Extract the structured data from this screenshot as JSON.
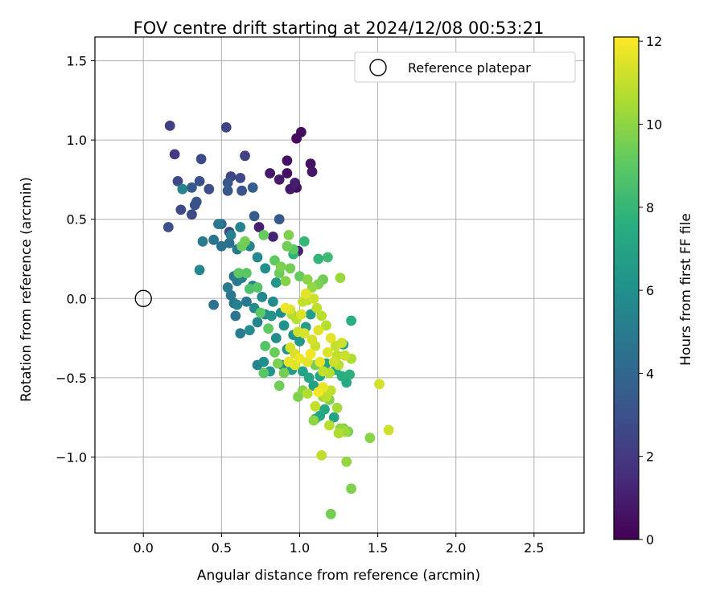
{
  "chart_data": {
    "type": "scatter",
    "title": "FOV centre drift starting at 2024/12/08 00:53:21",
    "xlabel": "Angular distance from reference (arcmin)",
    "ylabel": "Rotation from reference (arcmin)",
    "xlim": [
      -0.31,
      2.82
    ],
    "ylim": [
      -1.48,
      1.65
    ],
    "xticks": [
      0.0,
      0.5,
      1.0,
      1.5,
      2.0,
      2.5
    ],
    "xtick_labels": [
      "0.0",
      "0.5",
      "1.0",
      "1.5",
      "2.0",
      "2.5"
    ],
    "yticks": [
      -1.0,
      -0.5,
      0.0,
      0.5,
      1.0,
      1.5
    ],
    "ytick_labels": [
      "−1.0",
      "−0.5",
      "0.0",
      "0.5",
      "1.0",
      "1.5"
    ],
    "grid": true,
    "legend": {
      "position": "top-right",
      "entries": [
        "Reference platepar"
      ]
    },
    "colorbar": {
      "label": "Hours from first FF file",
      "range": [
        0,
        12.1
      ],
      "ticks": [
        0,
        2,
        4,
        6,
        8,
        10,
        12
      ],
      "tick_labels": [
        "0",
        "2",
        "4",
        "6",
        "8",
        "10",
        "12"
      ],
      "colormap": "viridis"
    },
    "reference_point": {
      "name": "Reference platepar",
      "x": 0.0,
      "y": 0.0
    },
    "points": [
      [
        0.98,
        1.01,
        0.3
      ],
      [
        1.01,
        1.05,
        0.4
      ],
      [
        0.92,
        0.87,
        0.5
      ],
      [
        1.07,
        0.85,
        0.6
      ],
      [
        1.08,
        0.8,
        0.7
      ],
      [
        0.92,
        0.79,
        0.5
      ],
      [
        0.81,
        0.79,
        0.8
      ],
      [
        0.87,
        0.75,
        0.9
      ],
      [
        0.97,
        0.73,
        1.0
      ],
      [
        0.98,
        0.7,
        0.6
      ],
      [
        0.94,
        0.69,
        0.8
      ],
      [
        0.74,
        0.45,
        1.1
      ],
      [
        0.83,
        0.39,
        1.2
      ],
      [
        0.99,
        0.3,
        1.0
      ],
      [
        0.17,
        1.09,
        2.2
      ],
      [
        0.53,
        1.08,
        2.4
      ],
      [
        0.2,
        0.91,
        2.1
      ],
      [
        0.65,
        0.9,
        2.3
      ],
      [
        0.37,
        0.88,
        2.8
      ],
      [
        0.56,
        0.77,
        2.5
      ],
      [
        0.22,
        0.74,
        2.6
      ],
      [
        0.62,
        0.76,
        2.7
      ],
      [
        0.36,
        0.74,
        3.0
      ],
      [
        0.54,
        0.73,
        3.2
      ],
      [
        0.31,
        0.7,
        3.4
      ],
      [
        0.42,
        0.69,
        2.9
      ],
      [
        0.54,
        0.68,
        3.3
      ],
      [
        0.63,
        0.68,
        3.1
      ],
      [
        0.7,
        0.7,
        3.6
      ],
      [
        0.24,
        0.56,
        2.8
      ],
      [
        0.33,
        0.59,
        3.0
      ],
      [
        0.34,
        0.61,
        3.1
      ],
      [
        0.31,
        0.53,
        2.7
      ],
      [
        0.71,
        0.52,
        3.5
      ],
      [
        0.87,
        0.5,
        3.4
      ],
      [
        0.16,
        0.45,
        2.9
      ],
      [
        0.55,
        0.42,
        2.6
      ],
      [
        0.25,
        0.69,
        5.4
      ],
      [
        0.36,
        0.18,
        5.5
      ],
      [
        0.38,
        0.36,
        5.0
      ],
      [
        0.45,
        0.37,
        4.6
      ],
      [
        0.48,
        0.47,
        4.8
      ],
      [
        0.5,
        0.47,
        4.2
      ],
      [
        0.5,
        0.33,
        4.5
      ],
      [
        0.55,
        0.35,
        4.4
      ],
      [
        0.56,
        0.4,
        5.2
      ],
      [
        0.6,
        0.31,
        4.9
      ],
      [
        0.62,
        0.45,
        5.3
      ],
      [
        0.68,
        0.33,
        5.5
      ],
      [
        0.73,
        0.26,
        5.6
      ],
      [
        0.58,
        0.14,
        4.7
      ],
      [
        0.6,
        0.11,
        4.9
      ],
      [
        0.63,
        0.13,
        5.1
      ],
      [
        0.54,
        0.07,
        5.0
      ],
      [
        0.56,
        0.02,
        4.8
      ],
      [
        0.58,
        -0.03,
        4.6
      ],
      [
        0.45,
        -0.04,
        4.5
      ],
      [
        0.6,
        -0.04,
        5.2
      ],
      [
        0.59,
        -0.11,
        4.7
      ],
      [
        0.66,
        -0.02,
        4.9
      ],
      [
        0.7,
        0.08,
        5.3
      ],
      [
        0.71,
        -0.06,
        5.7
      ],
      [
        0.62,
        -0.22,
        5.0
      ],
      [
        0.68,
        -0.2,
        5.8
      ],
      [
        0.73,
        -0.15,
        5.4
      ],
      [
        0.76,
        0.01,
        5.5
      ],
      [
        0.78,
        -0.1,
        5.6
      ],
      [
        0.78,
        0.19,
        6.0
      ],
      [
        0.83,
        -0.02,
        5.7
      ],
      [
        0.82,
        -0.11,
        6.2
      ],
      [
        0.85,
        -0.25,
        5.8
      ],
      [
        0.85,
        0.1,
        6.4
      ],
      [
        0.88,
        -0.09,
        5.9
      ],
      [
        0.9,
        -0.17,
        6.1
      ],
      [
        0.89,
        -0.42,
        5.6
      ],
      [
        0.92,
        -0.32,
        6.3
      ],
      [
        0.73,
        -0.42,
        5.3
      ],
      [
        0.77,
        -0.4,
        6.0
      ],
      [
        0.81,
        -0.46,
        6.2
      ],
      [
        0.95,
        -0.45,
        6.5
      ],
      [
        0.96,
        -0.23,
        6.1
      ],
      [
        1.0,
        -0.27,
        6.4
      ],
      [
        1.04,
        -0.18,
        6.6
      ],
      [
        1.07,
        -0.1,
        6.7
      ],
      [
        1.02,
        -0.46,
        6.9
      ],
      [
        1.06,
        -0.5,
        7.0
      ],
      [
        1.09,
        -0.55,
        6.8
      ],
      [
        1.13,
        -0.49,
        7.2
      ],
      [
        1.17,
        -0.41,
        7.1
      ],
      [
        1.23,
        -0.45,
        7.4
      ],
      [
        1.27,
        -0.49,
        7.5
      ],
      [
        1.3,
        -0.53,
        7.3
      ],
      [
        1.32,
        -0.48,
        7.7
      ],
      [
        1.33,
        -0.14,
        7.6
      ],
      [
        1.28,
        -0.29,
        7.0
      ],
      [
        1.1,
        -0.76,
        6.8
      ],
      [
        1.13,
        -0.74,
        7.1
      ],
      [
        1.16,
        -0.7,
        7.3
      ],
      [
        1.22,
        -0.75,
        6.9
      ],
      [
        1.18,
        0.26,
        8.2
      ],
      [
        1.12,
        0.25,
        7.9
      ],
      [
        1.03,
        0.36,
        8.0
      ],
      [
        0.96,
        0.28,
        7.8
      ],
      [
        0.61,
        0.16,
        9.0
      ],
      [
        0.66,
        0.16,
        8.9
      ],
      [
        0.68,
        0.06,
        8.6
      ],
      [
        0.73,
        0.07,
        8.8
      ],
      [
        0.63,
        0.33,
        9.3
      ],
      [
        0.65,
        0.36,
        9.5
      ],
      [
        0.77,
        0.4,
        9.2
      ],
      [
        0.84,
        0.24,
        9.1
      ],
      [
        0.88,
        0.2,
        9.6
      ],
      [
        0.92,
        0.33,
        9.4
      ],
      [
        0.96,
        0.31,
        9.0
      ],
      [
        0.93,
        0.4,
        9.7
      ],
      [
        0.87,
        0.16,
        9.3
      ],
      [
        0.91,
        0.11,
        9.8
      ],
      [
        0.94,
        0.19,
        9.5
      ],
      [
        1.0,
        0.14,
        9.2
      ],
      [
        1.05,
        0.12,
        9.9
      ],
      [
        1.08,
        0.07,
        10.1
      ],
      [
        1.12,
        0.09,
        9.6
      ],
      [
        1.15,
        0.12,
        9.4
      ],
      [
        1.26,
        0.13,
        10.2
      ],
      [
        0.75,
        -0.09,
        9.0
      ],
      [
        0.8,
        -0.19,
        9.1
      ],
      [
        0.78,
        -0.3,
        8.8
      ],
      [
        0.84,
        -0.34,
        9.3
      ],
      [
        0.77,
        -0.47,
        8.9
      ],
      [
        0.87,
        -0.55,
        9.4
      ],
      [
        0.86,
        -0.41,
        9.6
      ],
      [
        0.9,
        -0.47,
        9.5
      ],
      [
        0.99,
        -0.62,
        9.7
      ],
      [
        1.02,
        -0.58,
        9.9
      ],
      [
        1.1,
        -0.42,
        9.5
      ],
      [
        1.09,
        -0.77,
        10.0
      ],
      [
        1.15,
        -0.62,
        10.2
      ],
      [
        1.19,
        -0.64,
        9.8
      ],
      [
        1.24,
        -0.69,
        10.4
      ],
      [
        1.26,
        -0.82,
        10.0
      ],
      [
        1.29,
        -0.84,
        10.3
      ],
      [
        1.31,
        -0.84,
        9.6
      ],
      [
        1.28,
        -0.82,
        9.8
      ],
      [
        1.45,
        -0.88,
        9.9
      ],
      [
        1.3,
        -1.03,
        10.1
      ],
      [
        1.33,
        -1.2,
        9.7
      ],
      [
        1.2,
        -1.36,
        9.5
      ],
      [
        1.14,
        -0.99,
        10.9
      ],
      [
        1.19,
        -0.8,
        10.8
      ],
      [
        1.2,
        -0.58,
        11.0
      ],
      [
        1.25,
        -0.85,
        10.6
      ],
      [
        0.95,
        -0.1,
        10.6
      ],
      [
        0.98,
        -0.13,
        10.8
      ],
      [
        1.02,
        -0.02,
        11.0
      ],
      [
        1.05,
        -0.01,
        10.9
      ],
      [
        0.99,
        -0.21,
        11.2
      ],
      [
        1.03,
        -0.22,
        11.4
      ],
      [
        1.08,
        -0.26,
        11.3
      ],
      [
        1.1,
        -0.3,
        11.1
      ],
      [
        1.12,
        -0.2,
        11.5
      ],
      [
        1.14,
        -0.11,
        10.8
      ],
      [
        1.17,
        -0.17,
        10.7
      ],
      [
        1.2,
        -0.25,
        11.6
      ],
      [
        1.23,
        -0.3,
        11.0
      ],
      [
        1.27,
        -0.28,
        11.2
      ],
      [
        1.24,
        -0.36,
        10.9
      ],
      [
        1.18,
        -0.34,
        11.5
      ],
      [
        0.94,
        -0.31,
        11.3
      ],
      [
        0.97,
        -0.35,
        11.4
      ],
      [
        1.0,
        -0.38,
        11.8
      ],
      [
        1.05,
        -0.4,
        11.6
      ],
      [
        1.07,
        -0.35,
        11.9
      ],
      [
        0.93,
        -0.4,
        11.7
      ],
      [
        0.97,
        -0.42,
        11.5
      ],
      [
        1.15,
        -0.46,
        11.0
      ],
      [
        1.19,
        -0.47,
        10.7
      ],
      [
        1.22,
        -0.4,
        11.2
      ],
      [
        1.25,
        -0.42,
        10.8
      ],
      [
        1.29,
        -0.36,
        11.1
      ],
      [
        1.33,
        -0.38,
        10.6
      ],
      [
        1.51,
        -0.54,
        11.3
      ],
      [
        1.57,
        -0.83,
        11.2
      ],
      [
        1.15,
        -0.56,
        11.7
      ],
      [
        1.12,
        -0.59,
        11.9
      ],
      [
        1.05,
        -0.6,
        10.7
      ],
      [
        1.1,
        -0.68,
        11.0
      ],
      [
        1.17,
        -0.62,
        10.9
      ],
      [
        1.04,
        0.03,
        11.6
      ],
      [
        0.91,
        -0.06,
        11.8
      ],
      [
        0.94,
        -0.07,
        11.4
      ],
      [
        1.09,
        0.0,
        11.2
      ],
      [
        1.11,
        -0.06,
        10.9
      ],
      [
        1.01,
        -0.1,
        11.5
      ],
      [
        1.13,
        -0.4,
        11.7
      ]
    ]
  }
}
